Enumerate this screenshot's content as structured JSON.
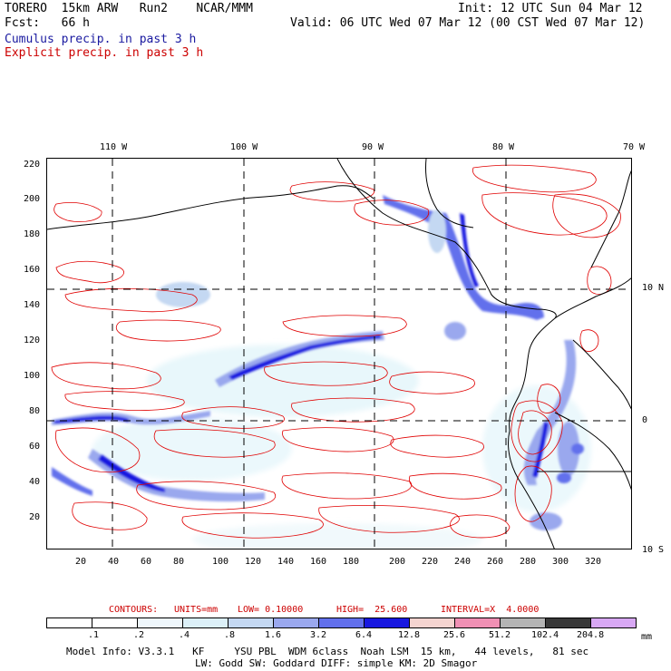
{
  "header": {
    "model_label": "TORERO  15km ARW   Run2    NCAR/MMM",
    "init_label": "Init: 12 UTC Sun 04 Mar 12",
    "fcst_label": "Fcst:   66 h",
    "valid_label": "Valid: 06 UTC Wed 07 Mar 12 (00 CST Wed 07 Mar 12)",
    "legend_cumulus": "Cumulus precip. in past 3 h",
    "legend_explicit": "Explicit precip. in past 3 h"
  },
  "colors": {
    "cumulus": "#1a1aa0",
    "explicit": "#cc0000",
    "contour": "#e00000"
  },
  "axes": {
    "top_lon_labels": [
      "110 W",
      "100 W",
      "90 W",
      "80 W",
      "70 W"
    ],
    "right_lat_labels": [
      "10 N",
      "0",
      "10 S"
    ],
    "left_y_ticks": [
      "220",
      "200",
      "180",
      "160",
      "140",
      "120",
      "100",
      "80",
      "60",
      "40",
      "20"
    ],
    "bottom_x_ticks": [
      "20",
      "40",
      "60",
      "80",
      "100",
      "120",
      "140",
      "160",
      "180",
      "200",
      "220",
      "240",
      "260",
      "280",
      "300",
      "320"
    ]
  },
  "contours_info": {
    "contours_label": "CONTOURS:",
    "units": "UNITS=mm",
    "low": "LOW= 0.10000",
    "high": "HIGH=  25.600",
    "interval": "INTERVAL=X  4.0000"
  },
  "colorbar": {
    "colors": [
      "#ffffff",
      "#ffffff",
      "#eef6fb",
      "#dcf0f8",
      "#c4d8f2",
      "#9aa8ee",
      "#6270ec",
      "#1818e0",
      "#f4d4d0",
      "#f090b4",
      "#b4b4b4",
      "#383838",
      "#d8a8f4"
    ],
    "labels": [
      ".1",
      ".2",
      ".4",
      ".8",
      "1.6",
      "3.2",
      "6.4",
      "12.8",
      "25.6",
      "51.2",
      "102.4",
      "204.8"
    ],
    "unit": "mm"
  },
  "footer": {
    "line1": "Model Info: V3.3.1   KF     YSU PBL  WDM 6class  Noah LSM  15 km,   44 levels,   81 sec",
    "line2": "LW: Godd SW: Goddard DIFF: simple KM: 2D Smagor"
  }
}
